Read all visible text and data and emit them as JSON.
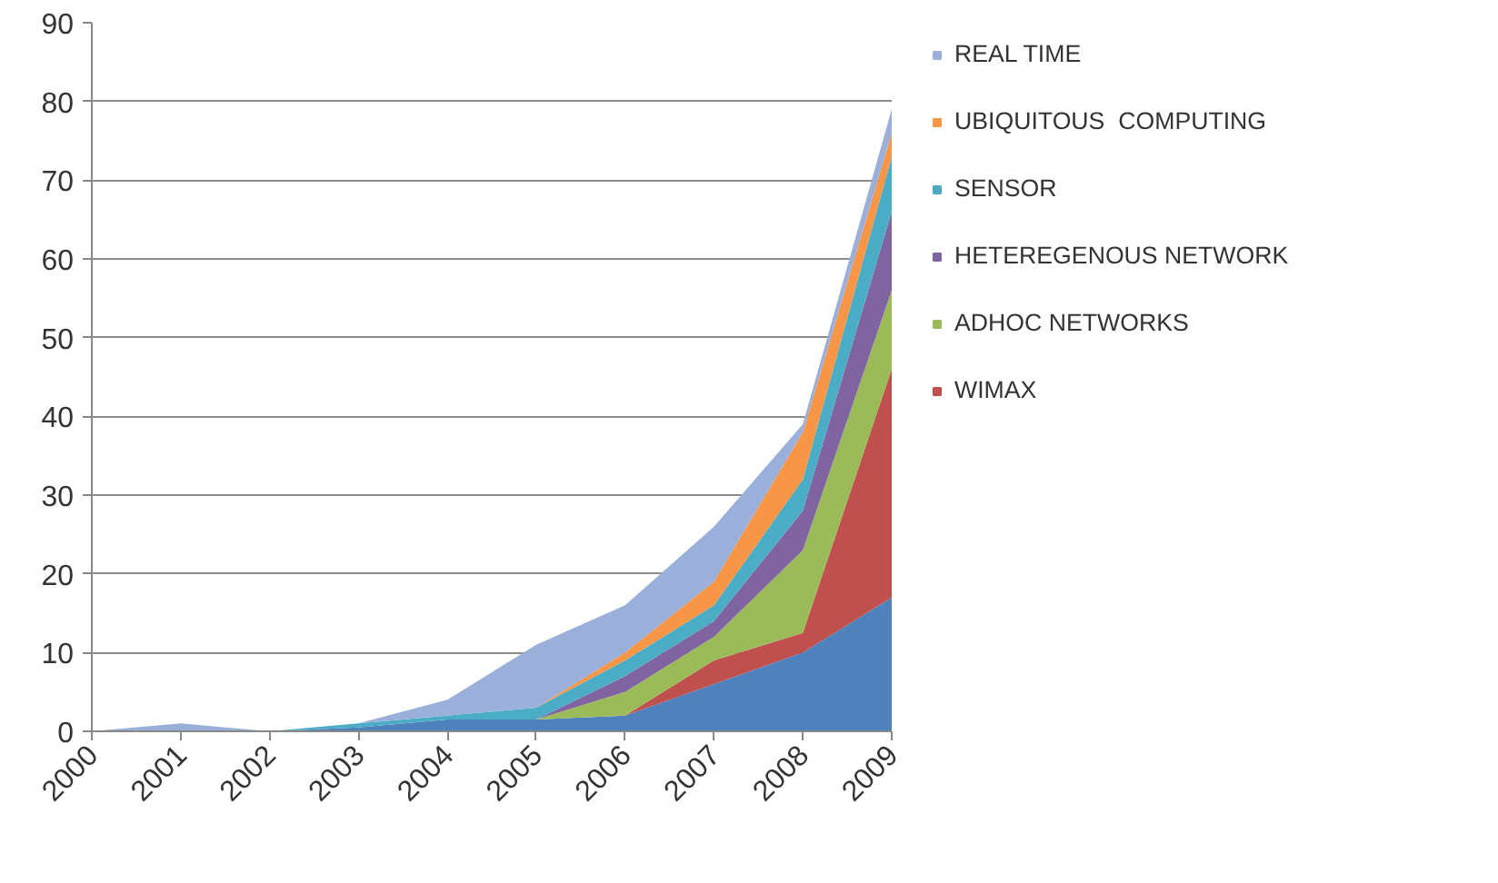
{
  "chart_data": {
    "type": "area",
    "stacked": true,
    "x": [
      2000,
      2001,
      2002,
      2003,
      2004,
      2005,
      2006,
      2007,
      2008,
      2009
    ],
    "xlim": [
      2000,
      2009
    ],
    "xticks": [
      2000,
      2001,
      2002,
      2003,
      2004,
      2005,
      2006,
      2007,
      2008,
      2009
    ],
    "ylim": [
      0,
      90
    ],
    "yticks": [
      0,
      10,
      20,
      30,
      40,
      50,
      60,
      70,
      80,
      90
    ],
    "grid": "y",
    "legend": "right",
    "series": [
      {
        "color": "#4f81bd",
        "values": [
          0,
          0,
          0,
          0.5,
          1.5,
          1.5,
          2,
          6,
          10,
          17
        ]
      },
      {
        "name": "WIMAX",
        "color": "#c0504d",
        "values": [
          0,
          0,
          0,
          0,
          0,
          0,
          0,
          3,
          2.5,
          29
        ]
      },
      {
        "name": "ADHOC NETWORKS",
        "color": "#9bbb59",
        "values": [
          0,
          0,
          0,
          0,
          0,
          0,
          3,
          3,
          10.5,
          10
        ]
      },
      {
        "name": "HETEREGENOUS NETWORK",
        "color": "#8064a2",
        "values": [
          0,
          0,
          0,
          0,
          0,
          0,
          2,
          2,
          5,
          10
        ]
      },
      {
        "name": "SENSOR",
        "color": "#4bacc6",
        "values": [
          0,
          0,
          0,
          0.5,
          0.5,
          1.5,
          2,
          2,
          4,
          7
        ]
      },
      {
        "name": "UBIQUITOUS  COMPUTING",
        "color": "#f79646",
        "values": [
          0,
          0,
          0,
          0,
          0,
          0,
          1,
          3,
          6,
          3
        ]
      },
      {
        "name": "REAL TIME",
        "color": "#9aafd9",
        "values": [
          0,
          1,
          0,
          0,
          2,
          8,
          6,
          7,
          1,
          3
        ]
      }
    ]
  }
}
